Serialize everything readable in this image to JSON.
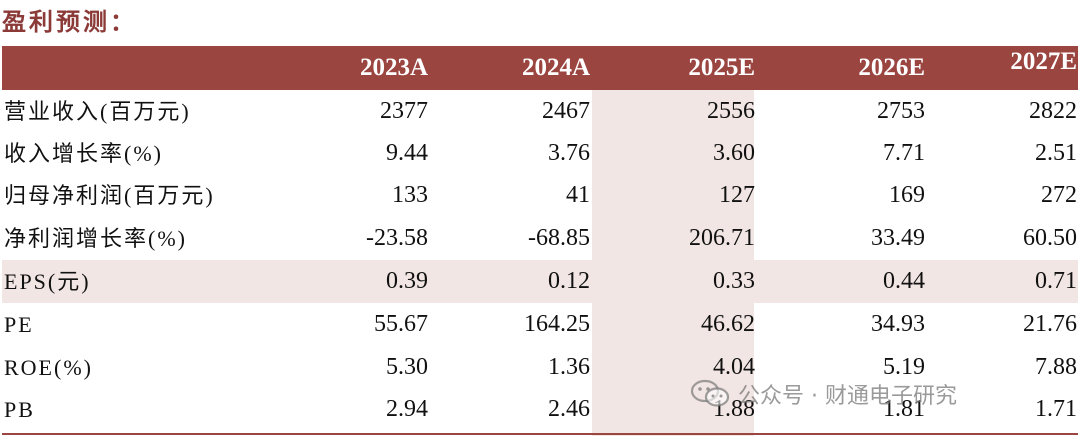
{
  "title": "盈利预测：",
  "header": {
    "columns": [
      "2023A",
      "2024A",
      "2025E",
      "2026E",
      "2027E"
    ]
  },
  "rows": [
    {
      "label": "营业收入(百万元)",
      "values": [
        "2377",
        "2467",
        "2556",
        "2753",
        "2822"
      ]
    },
    {
      "label": "收入增长率(%)",
      "values": [
        "9.44",
        "3.76",
        "3.60",
        "7.71",
        "2.51"
      ]
    },
    {
      "label": "归母净利润(百万元)",
      "values": [
        "133",
        "41",
        "127",
        "169",
        "272"
      ]
    },
    {
      "label": "净利润增长率(%)",
      "values": [
        "-23.58",
        "-68.85",
        "206.71",
        "33.49",
        "60.50"
      ]
    },
    {
      "label": "EPS(元)",
      "values": [
        "0.39",
        "0.12",
        "0.33",
        "0.44",
        "0.71"
      ]
    },
    {
      "label": "PE",
      "values": [
        "55.67",
        "164.25",
        "46.62",
        "34.93",
        "21.76"
      ]
    },
    {
      "label": "ROE(%)",
      "values": [
        "5.30",
        "1.36",
        "4.04",
        "5.19",
        "7.88"
      ]
    },
    {
      "label": "PB",
      "values": [
        "2.94",
        "2.46",
        "1.88",
        "1.81",
        "1.71"
      ]
    }
  ],
  "watermark": {
    "text": "公众号 · 财通电子研究",
    "icon": "wechat-icon"
  },
  "colors": {
    "header_bg": "#9b4541",
    "highlight_bg": "#f2e6e4",
    "title": "#8b3a37"
  }
}
